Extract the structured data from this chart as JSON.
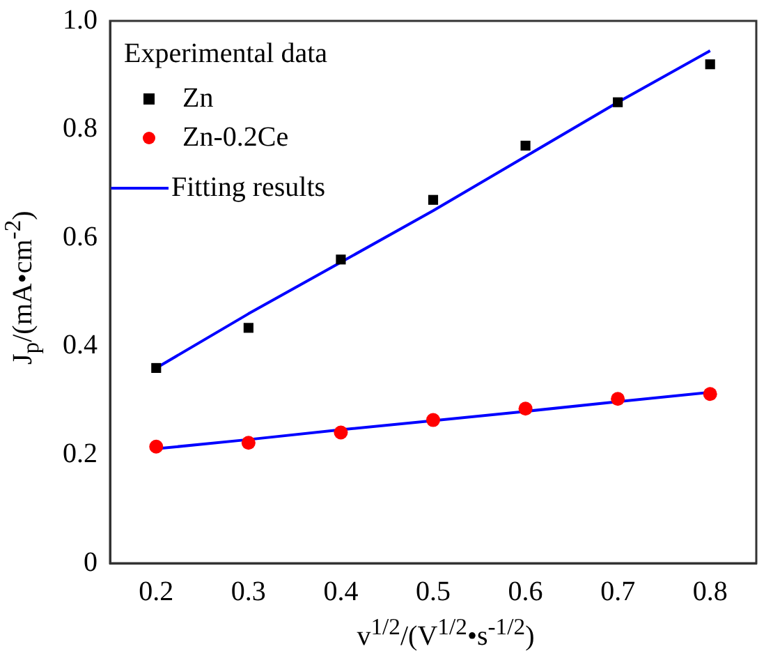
{
  "chart_data": {
    "type": "scatter",
    "xlabel": "v$^{1/2}$/(V$^{1/2}$•s$^{-1/2}$)",
    "ylabel": "J$_{p}$/(mA•cm$^{-2}$)",
    "legend_title": "Experimental data",
    "legend": "top left",
    "grid": false,
    "xlim": [
      0.15,
      0.85
    ],
    "xticks": [
      0.2,
      0.3,
      0.4,
      0.5,
      0.6,
      0.7,
      0.8
    ],
    "ylim": [
      0,
      1
    ],
    "yticks": [
      0,
      0.2,
      0.4,
      0.6,
      0.8,
      {
        "value": 1,
        "label": "1.0"
      }
    ],
    "x": [
      0.2,
      0.3,
      0.4,
      0.5,
      0.6,
      0.7,
      0.8
    ],
    "series": [
      {
        "name": "Zn",
        "color": "#000000",
        "marker": "square",
        "values": [
          0.36,
          0.434,
          0.56,
          0.67,
          0.77,
          0.85,
          0.92
        ]
      },
      {
        "name": "Zn-0.2Ce",
        "color": "#ff0000",
        "marker": "circle",
        "values": [
          0.215,
          0.222,
          0.241,
          0.264,
          0.285,
          0.303,
          0.312
        ]
      },
      {
        "name": "Fitting results",
        "type": "line",
        "color": "#0000ff",
        "marker": "none",
        "line_style": "solid",
        "values": [
          0.36,
          0.46,
          0.555,
          0.65,
          0.75,
          0.85,
          0.945
        ]
      },
      {
        "type": "line",
        "color": "#0000ff",
        "marker": "none",
        "line_style": "solid",
        "values": [
          0.211,
          0.228,
          0.246,
          0.263,
          0.28,
          0.298,
          0.315
        ]
      }
    ]
  }
}
